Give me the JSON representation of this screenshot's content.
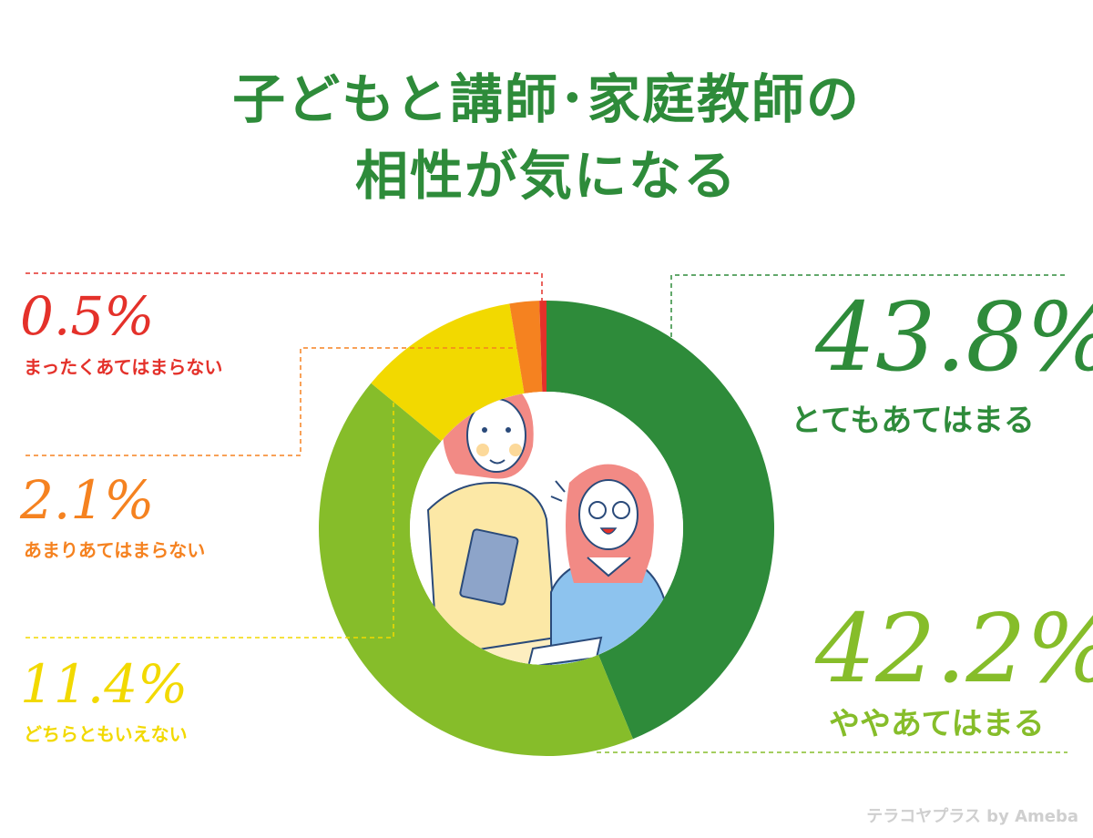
{
  "title_line1": "子どもと講師･家庭教師の",
  "title_line2": "相性が気になる",
  "watermark": "テラコヤプラス by Ameba",
  "chart_data": {
    "type": "pie",
    "categories": [
      "とてもあてはまる",
      "ややあてはまる",
      "どちらともいえない",
      "あまりあてはまらない",
      "まったくあてはまらない"
    ],
    "values": [
      43.8,
      42.2,
      11.4,
      2.1,
      0.5
    ],
    "display_values": [
      "43.8%",
      "42.2%",
      "11.4%",
      "2.1%",
      "0.5%"
    ],
    "colors": [
      "#2e8b3a",
      "#86bd2a",
      "#f2d900",
      "#f58220",
      "#e4312a"
    ]
  }
}
